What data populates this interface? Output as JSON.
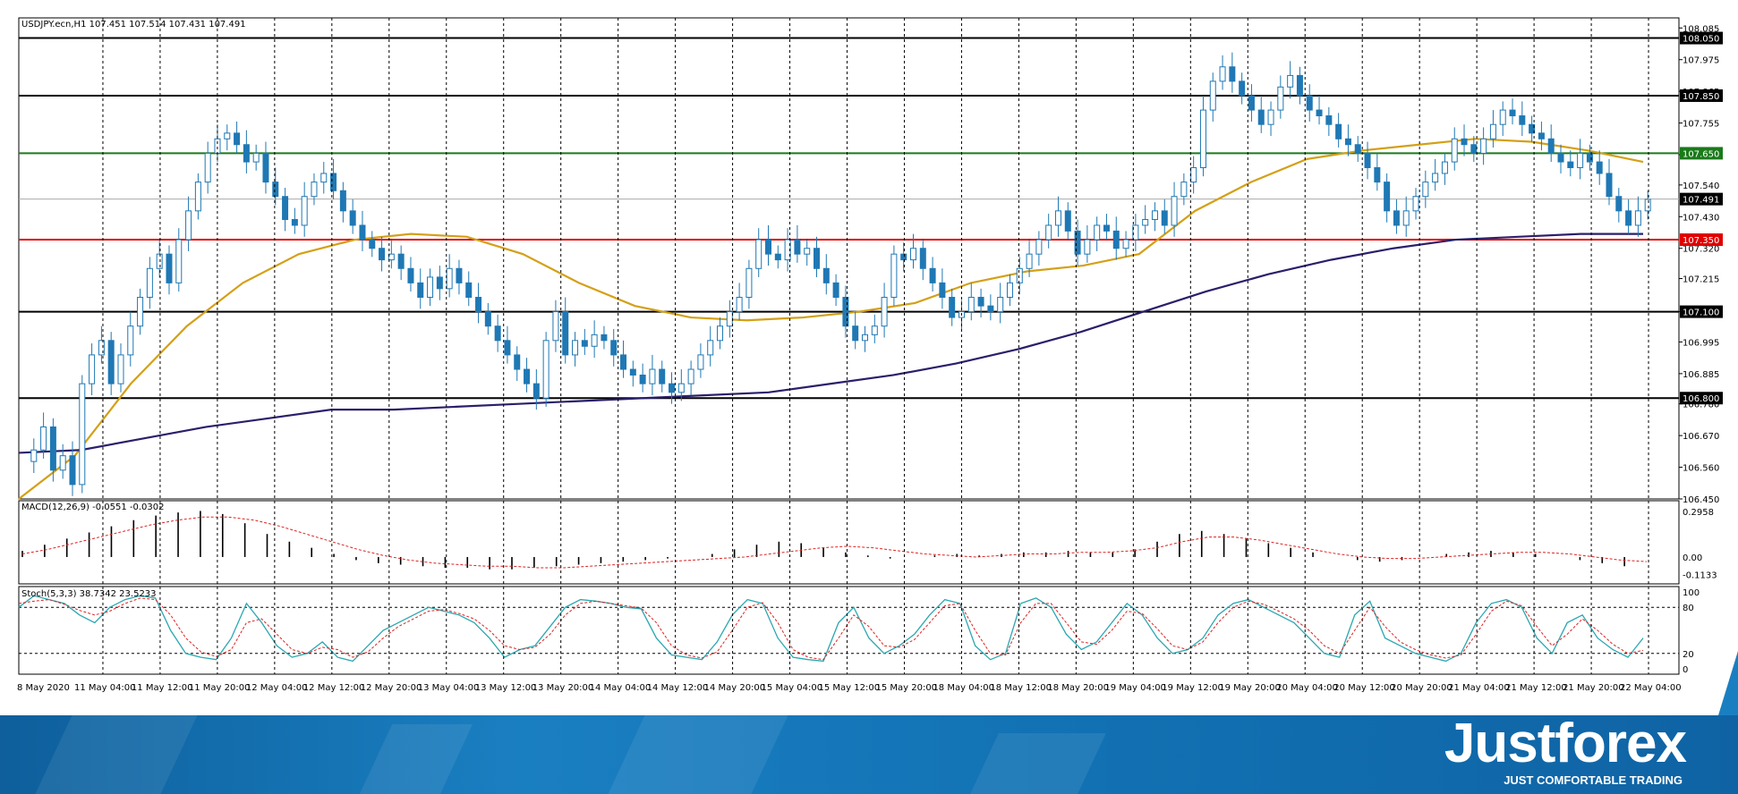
{
  "header": {
    "symbol_info": "USDJPY.ecn,H1  107.451 107.514 107.431 107.491"
  },
  "chart_data": {
    "type": "candlestick",
    "title": "USDJPY.ecn,H1",
    "ohlc_readout": {
      "open": 107.451,
      "high": 107.514,
      "low": 107.431,
      "close": 107.491
    },
    "ylim": [
      106.45,
      108.12
    ],
    "y_ticks": [
      "108.085",
      "107.975",
      "107.865",
      "107.755",
      "107.645",
      "107.540",
      "107.430",
      "107.320",
      "107.215",
      "107.100",
      "106.995",
      "106.885",
      "106.780",
      "106.670",
      "106.560",
      "106.450"
    ],
    "x_labels": [
      "8 May 2020",
      "11 May 04:00",
      "11 May 12:00",
      "11 May 20:00",
      "12 May 04:00",
      "12 May 12:00",
      "12 May 20:00",
      "13 May 04:00",
      "13 May 12:00",
      "13 May 20:00",
      "14 May 04:00",
      "14 May 12:00",
      "14 May 20:00",
      "15 May 04:00",
      "15 May 12:00",
      "15 May 20:00",
      "18 May 04:00",
      "18 May 12:00",
      "18 May 20:00",
      "19 May 04:00",
      "19 May 12:00",
      "19 May 20:00",
      "20 May 04:00",
      "20 May 12:00",
      "20 May 20:00",
      "21 May 04:00",
      "21 May 12:00",
      "21 May 20:00",
      "22 May 04:00"
    ],
    "close_path": [
      106.58,
      106.62,
      106.7,
      106.55,
      106.6,
      106.5,
      106.85,
      106.95,
      107.0,
      106.85,
      106.95,
      107.05,
      107.15,
      107.25,
      107.3,
      107.2,
      107.35,
      107.45,
      107.55,
      107.65,
      107.7,
      107.72,
      107.68,
      107.62,
      107.65,
      107.55,
      107.5,
      107.42,
      107.4,
      107.5,
      107.55,
      107.58,
      107.52,
      107.45,
      107.4,
      107.35,
      107.32,
      107.28,
      107.3,
      107.25,
      107.2,
      107.15,
      107.22,
      107.18,
      107.25,
      107.2,
      107.15,
      107.1,
      107.05,
      107.0,
      106.95,
      106.9,
      106.85,
      106.8,
      107.0,
      107.1,
      106.95,
      107.0,
      106.98,
      107.02,
      107.0,
      106.95,
      106.9,
      106.88,
      106.85,
      106.9,
      106.85,
      106.82,
      106.85,
      106.9,
      106.95,
      107.0,
      107.05,
      107.1,
      107.15,
      107.25,
      107.35,
      107.3,
      107.28,
      107.35,
      107.3,
      107.32,
      107.25,
      107.2,
      107.15,
      107.05,
      107.0,
      107.02,
      107.05,
      107.15,
      107.3,
      107.28,
      107.32,
      107.25,
      107.2,
      107.15,
      107.08,
      107.1,
      107.15,
      107.12,
      107.1,
      107.15,
      107.2,
      107.25,
      107.3,
      107.35,
      107.4,
      107.45,
      107.38,
      107.3,
      107.35,
      107.4,
      107.38,
      107.32,
      107.35,
      107.4,
      107.42,
      107.45,
      107.4,
      107.5,
      107.55,
      107.6,
      107.8,
      107.9,
      107.95,
      107.9,
      107.85,
      107.8,
      107.75,
      107.8,
      107.88,
      107.92,
      107.85,
      107.8,
      107.78,
      107.75,
      107.7,
      107.68,
      107.65,
      107.6,
      107.55,
      107.45,
      107.4,
      107.45,
      107.5,
      107.55,
      107.58,
      107.62,
      107.7,
      107.68,
      107.65,
      107.7,
      107.75,
      107.8,
      107.78,
      107.75,
      107.72,
      107.7,
      107.65,
      107.62,
      107.6,
      107.65,
      107.62,
      107.58,
      107.5,
      107.45,
      107.4,
      107.45,
      107.49
    ],
    "horizontal_levels": [
      {
        "value": 108.05,
        "label": "108.050",
        "color": "#000000"
      },
      {
        "value": 107.85,
        "label": "107.850",
        "color": "#000000"
      },
      {
        "value": 107.65,
        "label": "107.650",
        "color": "#1a7a1a"
      },
      {
        "value": 107.491,
        "label": "107.491",
        "color": "#000000"
      },
      {
        "value": 107.35,
        "label": "107.350",
        "color": "#e00000"
      },
      {
        "value": 107.1,
        "label": "107.100",
        "color": "#000000"
      },
      {
        "value": 106.8,
        "label": "106.800",
        "color": "#000000"
      }
    ],
    "moving_averages": [
      {
        "color": "#d4a017",
        "values": [
          106.45,
          106.6,
          106.85,
          107.05,
          107.2,
          107.3,
          107.35,
          107.37,
          107.36,
          107.3,
          107.2,
          107.12,
          107.08,
          107.07,
          107.08,
          107.1,
          107.13,
          107.2,
          107.24,
          107.26,
          107.3,
          107.45,
          107.55,
          107.63,
          107.66,
          107.68,
          107.7,
          107.69,
          107.66,
          107.62
        ]
      },
      {
        "color": "#2a1f6b",
        "values": [
          106.61,
          106.62,
          106.66,
          106.7,
          106.73,
          106.76,
          106.76,
          106.77,
          106.78,
          106.79,
          106.8,
          106.81,
          106.82,
          106.85,
          106.88,
          106.92,
          106.97,
          107.03,
          107.1,
          107.17,
          107.23,
          107.28,
          107.32,
          107.35,
          107.36,
          107.37,
          107.37
        ]
      }
    ],
    "macd": {
      "label": "MACD(12,26,9) -0.0551 -0.0302",
      "scale_labels": [
        "0.2958",
        "0.00",
        "-0.1133"
      ],
      "ylim": [
        -0.14,
        0.32
      ],
      "histogram": [
        0.04,
        0.08,
        0.12,
        0.16,
        0.2,
        0.24,
        0.27,
        0.29,
        0.3,
        0.28,
        0.22,
        0.15,
        0.1,
        0.06,
        0.02,
        -0.02,
        -0.04,
        -0.05,
        -0.06,
        -0.07,
        -0.07,
        -0.08,
        -0.08,
        -0.07,
        -0.06,
        -0.05,
        -0.04,
        -0.03,
        -0.02,
        -0.01,
        0.0,
        0.02,
        0.05,
        0.08,
        0.1,
        0.09,
        0.06,
        0.03,
        0.01,
        -0.01,
        0.0,
        0.01,
        0.02,
        0.01,
        0.02,
        0.03,
        0.03,
        0.04,
        0.03,
        0.03,
        0.05,
        0.1,
        0.15,
        0.17,
        0.15,
        0.12,
        0.09,
        0.06,
        0.03,
        0.0,
        -0.02,
        -0.03,
        -0.02,
        0.0,
        0.02,
        0.03,
        0.04,
        0.03,
        0.02,
        0.0,
        -0.02,
        -0.04,
        -0.06
      ],
      "signal": [
        0.02,
        0.05,
        0.09,
        0.13,
        0.17,
        0.21,
        0.24,
        0.26,
        0.26,
        0.24,
        0.2,
        0.15,
        0.1,
        0.05,
        0.01,
        -0.02,
        -0.04,
        -0.05,
        -0.06,
        -0.06,
        -0.07,
        -0.07,
        -0.06,
        -0.05,
        -0.04,
        -0.03,
        -0.02,
        -0.01,
        0.0,
        0.02,
        0.04,
        0.06,
        0.07,
        0.06,
        0.04,
        0.02,
        0.01,
        0.0,
        0.01,
        0.02,
        0.02,
        0.03,
        0.03,
        0.04,
        0.06,
        0.1,
        0.13,
        0.13,
        0.11,
        0.08,
        0.05,
        0.02,
        0.0,
        -0.01,
        -0.01,
        0.0,
        0.01,
        0.02,
        0.03,
        0.03,
        0.02,
        0.0,
        -0.02,
        -0.03
      ]
    },
    "stochastic": {
      "label": "Stoch(5,3,3) 38.7342 23.5233",
      "scale_labels": [
        "100",
        "80",
        "20",
        "0"
      ],
      "levels": [
        80,
        20
      ],
      "ylim": [
        0,
        100
      ],
      "k_line": [
        80,
        95,
        90,
        85,
        70,
        60,
        80,
        90,
        95,
        92,
        50,
        20,
        15,
        12,
        40,
        85,
        60,
        30,
        15,
        20,
        35,
        15,
        10,
        30,
        50,
        60,
        70,
        80,
        75,
        70,
        60,
        40,
        15,
        25,
        30,
        55,
        80,
        90,
        88,
        85,
        80,
        78,
        40,
        18,
        15,
        12,
        35,
        70,
        90,
        85,
        40,
        15,
        12,
        10,
        60,
        80,
        40,
        20,
        30,
        45,
        70,
        90,
        85,
        30,
        12,
        20,
        85,
        92,
        80,
        45,
        25,
        35,
        60,
        85,
        70,
        40,
        20,
        25,
        40,
        70,
        85,
        90,
        80,
        70,
        60,
        40,
        20,
        15,
        70,
        88,
        40,
        30,
        20,
        15,
        10,
        20,
        60,
        85,
        90,
        80,
        40,
        20,
        60,
        70,
        40,
        25,
        15,
        40
      ],
      "d_line": [
        85,
        88,
        90,
        84,
        76,
        70,
        75,
        85,
        92,
        90,
        70,
        40,
        22,
        16,
        25,
        60,
        65,
        45,
        25,
        20,
        28,
        25,
        15,
        22,
        40,
        55,
        65,
        75,
        77,
        72,
        65,
        50,
        30,
        25,
        28,
        45,
        70,
        85,
        88,
        85,
        82,
        79,
        60,
        30,
        18,
        14,
        22,
        50,
        80,
        86,
        60,
        25,
        15,
        12,
        40,
        70,
        55,
        30,
        28,
        38,
        60,
        82,
        85,
        50,
        20,
        18,
        60,
        85,
        85,
        60,
        35,
        32,
        50,
        75,
        72,
        52,
        30,
        25,
        35,
        60,
        80,
        88,
        84,
        75,
        65,
        50,
        30,
        20,
        50,
        80,
        55,
        35,
        25,
        18,
        14,
        18,
        45,
        75,
        88,
        82,
        55,
        30,
        45,
        65,
        50,
        32,
        20,
        24
      ]
    }
  },
  "branding": {
    "logo_text": "Justforex",
    "tagline": "JUST COMFORTABLE TRADING"
  },
  "colors": {
    "candle": "#1f78b4",
    "grid": "#000000",
    "banner": "#1272b4"
  }
}
